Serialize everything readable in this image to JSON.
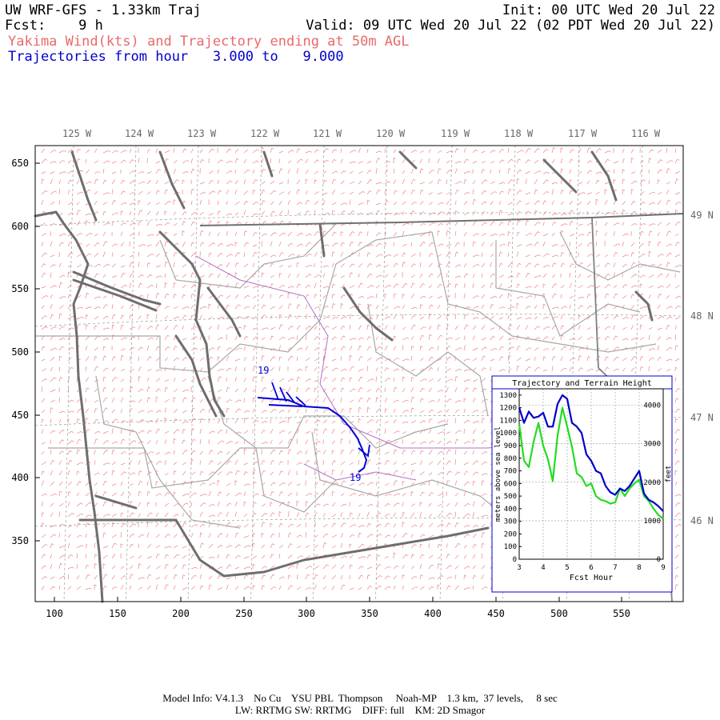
{
  "header": {
    "line1_left": "UW WRF-GFS - 1.33km Traj",
    "line1_right": "Init: 00 UTC Wed 20 Jul 22",
    "line2_left": "Fcst:    9 h",
    "line2_right": "Valid: 09 UTC Wed 20 Jul 22 (02 PDT Wed 20 Jul 22)",
    "line3": "Yakima Wind(kts) and Trajectory ending at 50m AGL",
    "line4": "Trajectories from hour   3.000 to   9.000"
  },
  "colors": {
    "wind": "#f08080",
    "trajectory": "#0000dd",
    "coast": "#6e6e6e",
    "borders": "#a8a8a8",
    "rivers": "#b070c0",
    "terrain_line": "#22dd22",
    "traj_line": "#0000cc"
  },
  "map": {
    "top_lon_labels": [
      "125 W",
      "124 W",
      "123 W",
      "122 W",
      "121 W",
      "120 W",
      "119 W",
      "118 W",
      "117 W",
      "116 W"
    ],
    "right_lat_labels": [
      "49 N",
      "48 N",
      "47 N",
      "46 N"
    ],
    "y_grid_labels": [
      "650",
      "600",
      "550",
      "500",
      "450",
      "400",
      "350"
    ],
    "x_grid_labels": [
      "100",
      "150",
      "200",
      "250",
      "300",
      "350",
      "400",
      "450",
      "500",
      "550"
    ],
    "trajectory_start_label": "19",
    "trajectory_end_label": "19"
  },
  "inset": {
    "title": "Trajectory and Terrain Height",
    "ylabel_left": "meters above sea level",
    "ylabel_right": "feet",
    "xlabel": "Fcst Hour"
  },
  "chart_data": {
    "type": "line",
    "title": "Trajectory and Terrain Height",
    "xlabel": "Fcst Hour",
    "ylabel": "meters above sea level",
    "y2label": "feet",
    "xlim": [
      3,
      9
    ],
    "ylim": [
      0,
      1350
    ],
    "x_ticks": [
      "3",
      "4",
      "5",
      "6",
      "7",
      "8",
      "9"
    ],
    "y_ticks": [
      "0",
      "100",
      "200",
      "300",
      "400",
      "500",
      "600",
      "700",
      "800",
      "900",
      "1000",
      "1100",
      "1200",
      "1300"
    ],
    "y2_ticks": [
      "0",
      "1000",
      "2000",
      "3000",
      "4000"
    ],
    "grid": true,
    "x": [
      3.0,
      3.2,
      3.4,
      3.6,
      3.8,
      4.0,
      4.2,
      4.4,
      4.6,
      4.8,
      5.0,
      5.2,
      5.4,
      5.6,
      5.8,
      6.0,
      6.2,
      6.4,
      6.6,
      6.8,
      7.0,
      7.2,
      7.4,
      7.6,
      7.8,
      8.0,
      8.2,
      8.4,
      8.6,
      8.8,
      9.0
    ],
    "series": [
      {
        "values": [
          1200,
          1080,
          1170,
          1120,
          1130,
          1160,
          1050,
          1050,
          1230,
          1300,
          1270,
          1080,
          1050,
          1000,
          830,
          780,
          700,
          680,
          580,
          530,
          510,
          560,
          540,
          580,
          640,
          700,
          520,
          470,
          450,
          420,
          380
        ]
      },
      {
        "values": [
          1070,
          780,
          730,
          930,
          1080,
          900,
          790,
          620,
          980,
          1200,
          1050,
          890,
          680,
          650,
          580,
          600,
          500,
          470,
          460,
          440,
          450,
          560,
          500,
          560,
          600,
          630,
          500,
          460,
          400,
          350,
          320
        ]
      }
    ]
  },
  "footer": {
    "line1": "Model Info: V4.1.3    No Cu    YSU PBL  Thompson     Noah-MP    1.3 km,  37 levels,     8 sec",
    "line2": "LW: RRTMG SW: RRTMG    DIFF: full    KM: 2D Smagor"
  }
}
